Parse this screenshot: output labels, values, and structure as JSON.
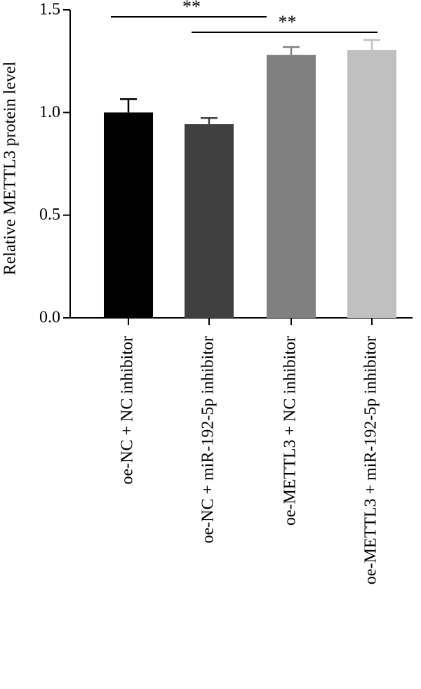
{
  "chart_data": {
    "type": "bar",
    "y_label": "Relative METTL3 protein level",
    "categories": [
      "oe-NC + NC inhibitor",
      "oe-NC + miR-192-5p inhibitor",
      "oe-METTL3 + NC inhibitor",
      "oe-METTL3 + miR-192-5p inhibitor"
    ],
    "values": [
      1.0,
      0.943,
      1.281,
      1.305
    ],
    "errors": [
      0.065,
      0.03,
      0.038,
      0.048
    ],
    "colors": [
      "#000000",
      "#404040",
      "#808080",
      "#c0c0c0"
    ],
    "ylim": [
      0,
      1.5
    ],
    "yticks": [
      {
        "value": 0,
        "label": "0.0"
      },
      {
        "value": 0.5,
        "label": "0.5"
      },
      {
        "value": 1,
        "label": "1.0"
      },
      {
        "value": 1.5,
        "label": "1.5"
      }
    ],
    "significance": [
      {
        "label": "**",
        "categories": [
          0,
          2
        ]
      },
      {
        "label": "**",
        "categories": [
          1,
          3
        ]
      }
    ]
  }
}
